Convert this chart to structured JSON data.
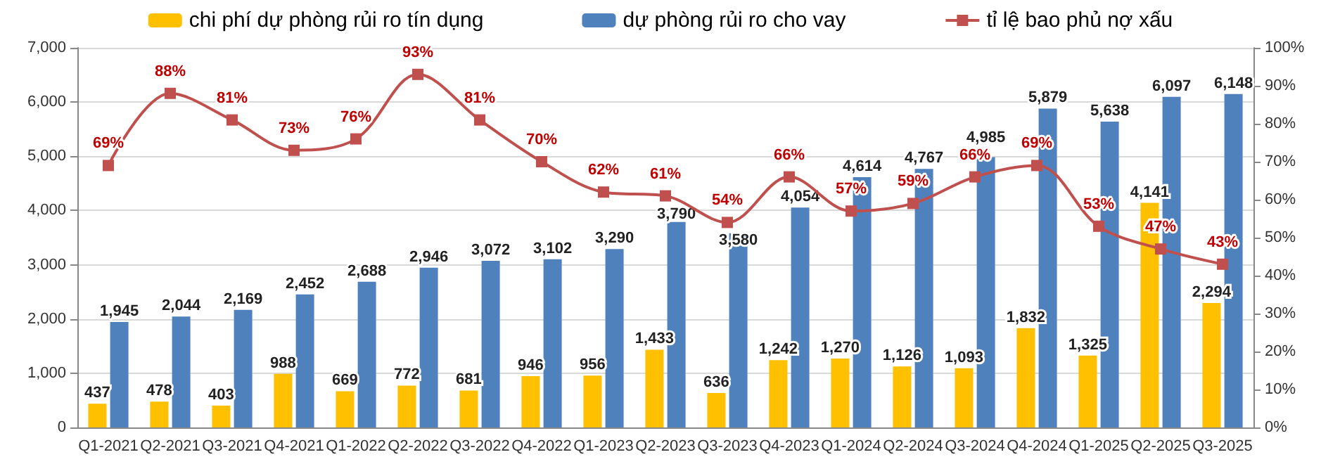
{
  "chart_data": {
    "type": "bar",
    "categories": [
      "Q1-2021",
      "Q2-2021",
      "Q3-2021",
      "Q4-2021",
      "Q1-2022",
      "Q2-2022",
      "Q3-2022",
      "Q4-2022",
      "Q1-2023",
      "Q2-2023",
      "Q3-2023",
      "Q4-2023",
      "Q1-2024",
      "Q2-2024",
      "Q3-2024",
      "Q4-2024",
      "Q1-2025",
      "Q2-2025",
      "Q3-2025"
    ],
    "series": [
      {
        "name": "chi phí dự phòng rủi ro tín dụng",
        "color": "#ffc000",
        "values": [
          437,
          478,
          403,
          988,
          669,
          772,
          681,
          946,
          956,
          1433,
          636,
          1242,
          1270,
          1126,
          1093,
          1832,
          1325,
          4141,
          2294
        ],
        "value_labels": [
          "437",
          "478",
          "403",
          "988",
          "669",
          "772",
          "681",
          "946",
          "956",
          "1,433",
          "636",
          "1,242",
          "1,270",
          "1,126",
          "1,093",
          "1,832",
          "1,325",
          "4,141",
          "2,294"
        ]
      },
      {
        "name": "dự phòng rủi ro cho vay",
        "color": "#4f81bd",
        "values": [
          1945,
          2044,
          2169,
          2452,
          2688,
          2946,
          3072,
          3102,
          3290,
          3790,
          3580,
          4054,
          4614,
          4767,
          4985,
          5879,
          5638,
          6097,
          6148
        ],
        "value_labels": [
          "1,945",
          "2,044",
          "2,169",
          "2,452",
          "2,688",
          "2,946",
          "3,072",
          "3,102",
          "3,290",
          "3,790",
          "3,580",
          "4,054",
          "4,614",
          "4,767",
          "4,985",
          "5,879",
          "5,638",
          "6,097",
          "6,148"
        ]
      },
      {
        "name": "tỉ lệ bao phủ nợ xấu",
        "type": "line",
        "axis": "y2",
        "color": "#c0504d",
        "marker": "square",
        "values": [
          69,
          88,
          81,
          73,
          76,
          93,
          81,
          70,
          62,
          61,
          54,
          66,
          57,
          59,
          66,
          69,
          53,
          47,
          43
        ],
        "value_labels": [
          "69%",
          "88%",
          "81%",
          "73%",
          "76%",
          "93%",
          "81%",
          "70%",
          "62%",
          "61%",
          "54%",
          "66%",
          "57%",
          "59%",
          "66%",
          "69%",
          "53%",
          "47%",
          "43%"
        ]
      }
    ],
    "ylim": [
      0,
      7000
    ],
    "yticks": [
      0,
      {
        "value": 1000,
        "label": "1,000"
      },
      {
        "value": 2000,
        "label": "2,000"
      },
      {
        "value": 3000,
        "label": "3,000"
      },
      {
        "value": 4000,
        "label": "4,000"
      },
      {
        "value": 5000,
        "label": "5,000"
      },
      {
        "value": 6000,
        "label": "6,000"
      },
      {
        "value": 7000,
        "label": "7,000"
      }
    ],
    "y2lim": [
      0,
      100
    ],
    "y2ticks": [
      {
        "value": 0,
        "label": "0%"
      },
      {
        "value": 10,
        "label": "10%"
      },
      {
        "value": 20,
        "label": "20%"
      },
      {
        "value": 30,
        "label": "30%"
      },
      {
        "value": 40,
        "label": "40%"
      },
      {
        "value": 50,
        "label": "50%"
      },
      {
        "value": 60,
        "label": "60%"
      },
      {
        "value": 70,
        "label": "70%"
      },
      {
        "value": 80,
        "label": "80%"
      },
      {
        "value": 90,
        "label": "90%"
      },
      {
        "value": 100,
        "label": "100%"
      }
    ],
    "grid": "y",
    "legend": "top"
  }
}
